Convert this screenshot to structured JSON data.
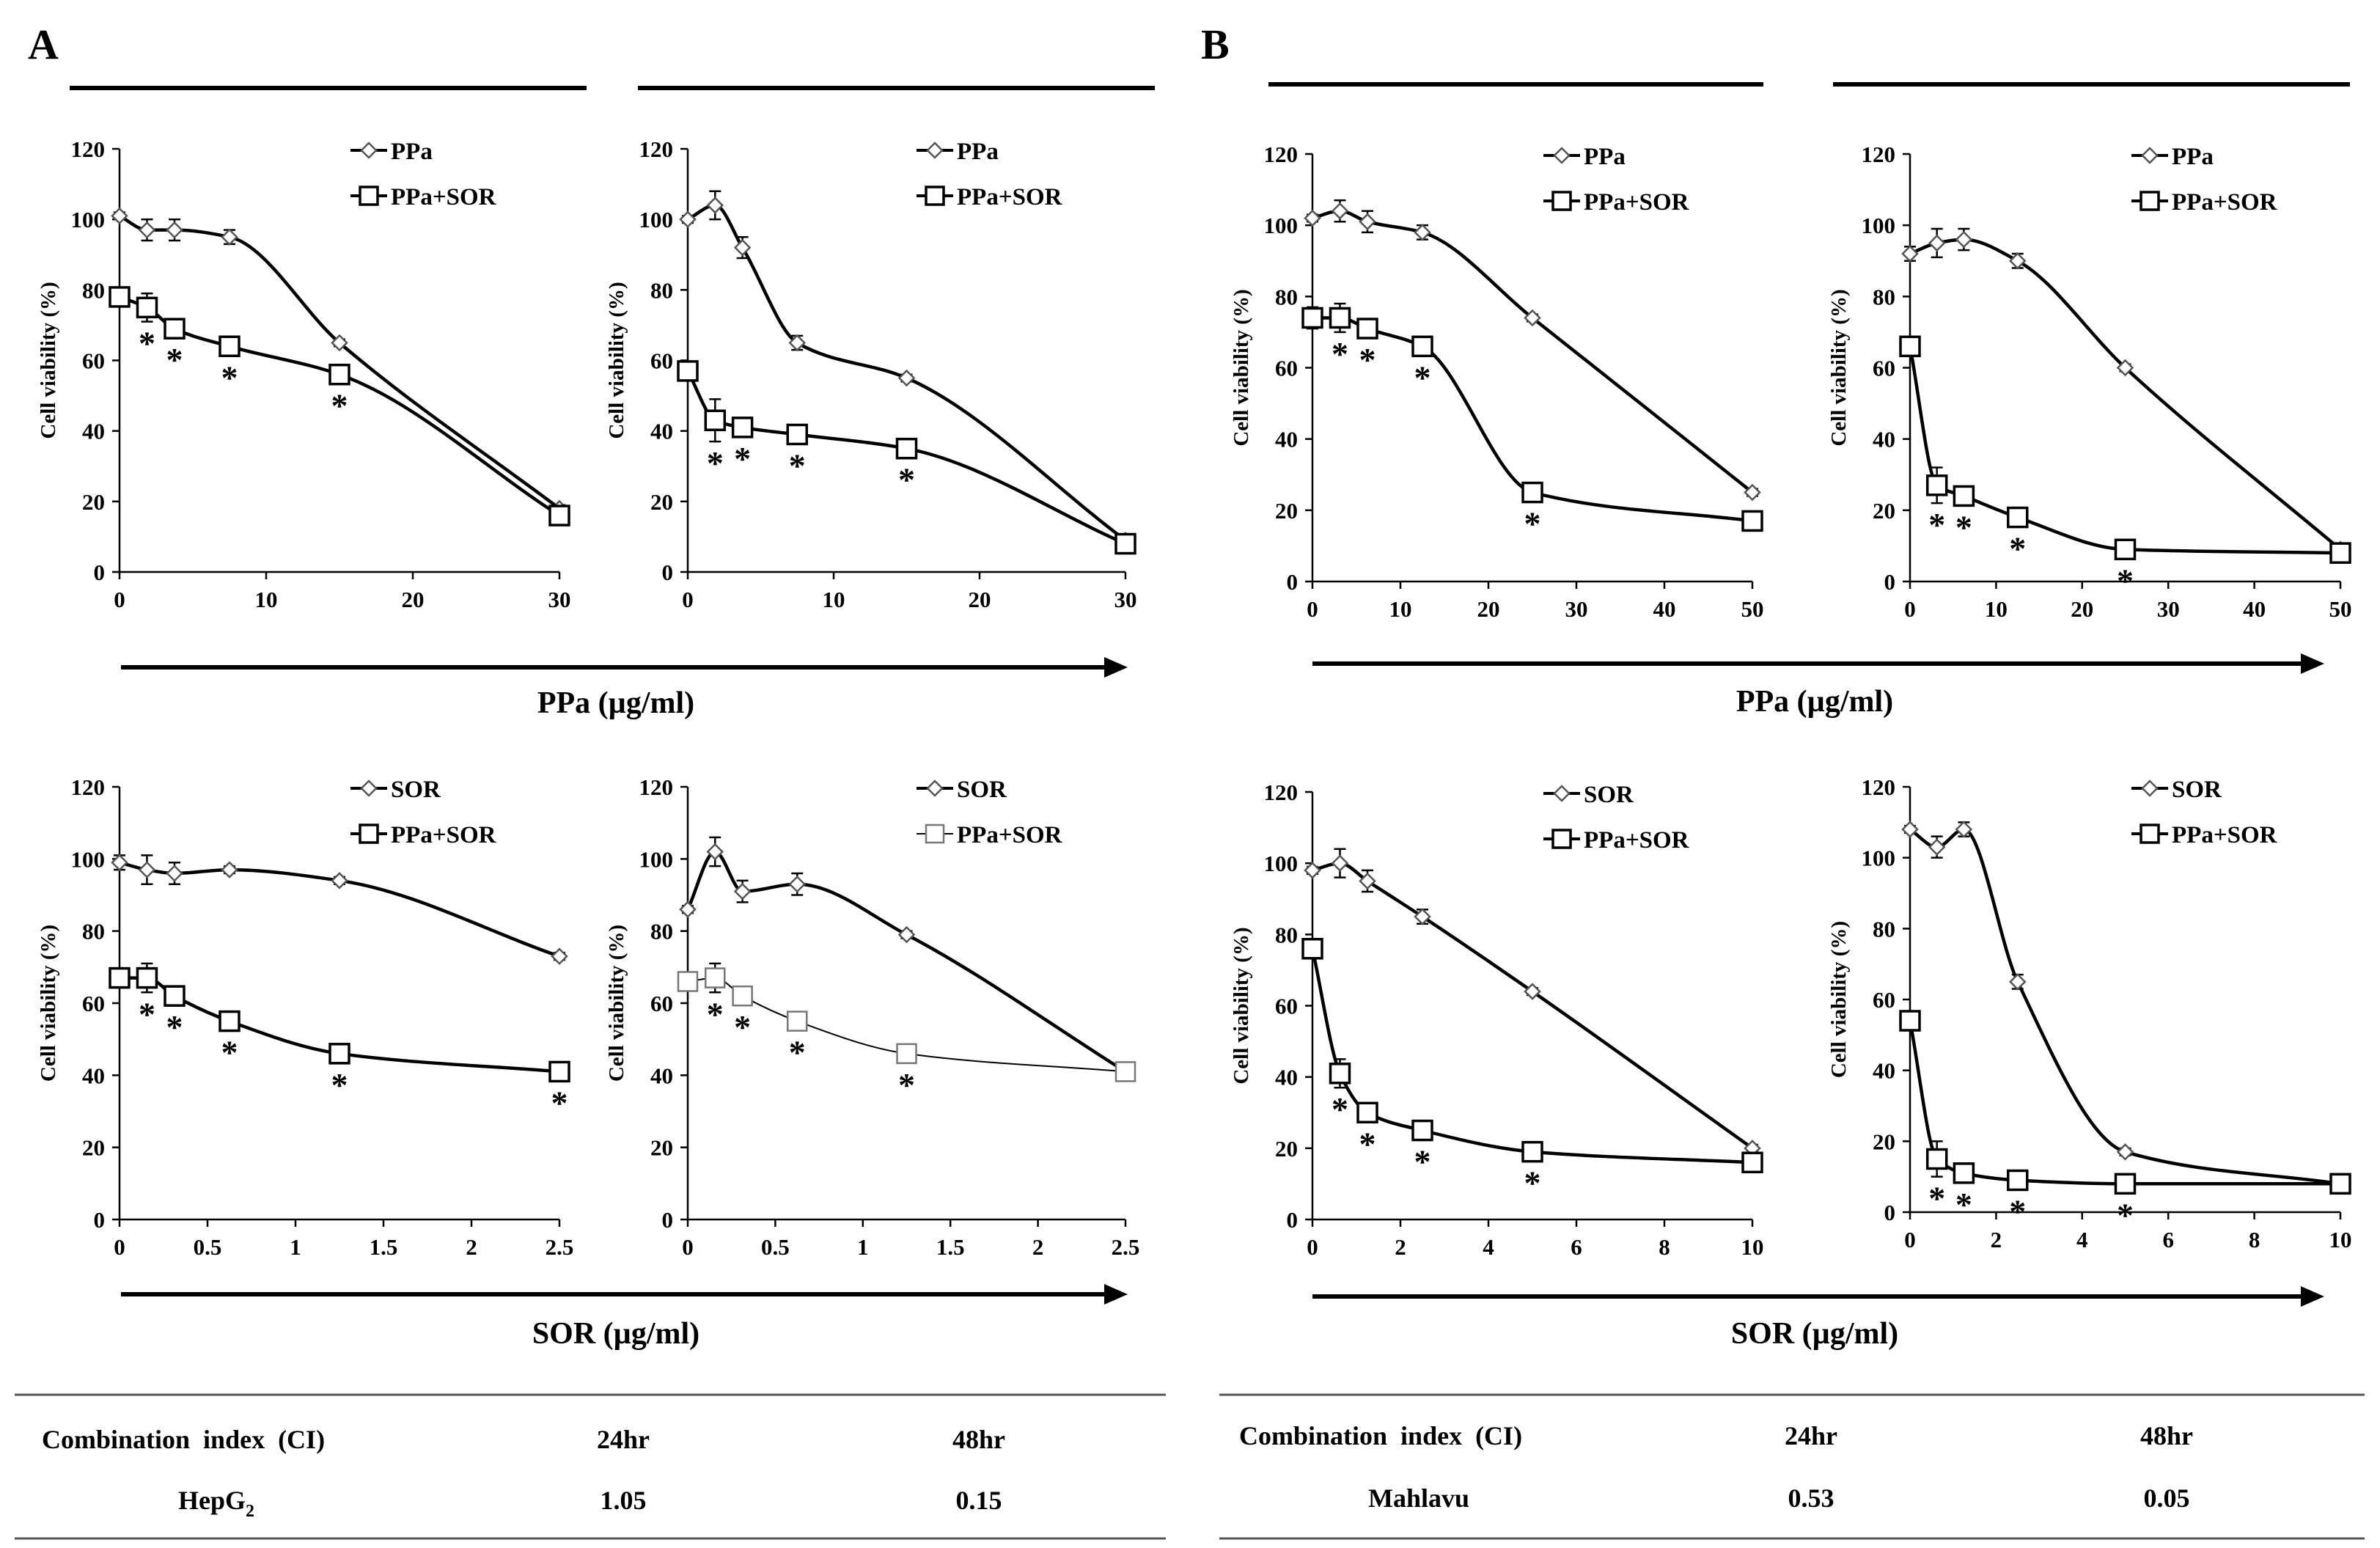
{
  "panels": [
    {
      "letter": "A",
      "cell_line": "HepG2",
      "ci_24": "1.05",
      "ci_48": "0.15"
    },
    {
      "letter": "B",
      "cell_line": "Mahlavu",
      "ci_24": "0.53",
      "ci_48": "0.05"
    }
  ],
  "axis_titles": {
    "ppa": "PPa (µg/ml)",
    "sor": "SOR (µg/ml)"
  },
  "table": {
    "header_label": "Combination  index  (CI)",
    "col_24": "24hr",
    "col_48": "48hr"
  },
  "style": {
    "line_color": "#000000",
    "light_marker_color": "#777777"
  },
  "chart_data": [
    {
      "id": "A-ppa-24",
      "type": "line",
      "title": "",
      "xlabel": "PPa (µg/ml)",
      "ylabel": "Cell viability (%)",
      "xlim": [
        0,
        30
      ],
      "ylim": [
        0,
        120
      ],
      "xticks": [
        0,
        10,
        20,
        30
      ],
      "yticks": [
        0,
        20,
        40,
        60,
        80,
        100,
        120
      ],
      "series": [
        {
          "name": "PPa",
          "marker": "diamond",
          "x": [
            0,
            1.875,
            3.75,
            7.5,
            15,
            30
          ],
          "y": [
            101,
            97,
            97,
            95,
            65,
            18
          ],
          "err": [
            1,
            3,
            3,
            2,
            1,
            1
          ]
        },
        {
          "name": "PPa+SOR",
          "marker": "square",
          "x": [
            0,
            1.875,
            3.75,
            7.5,
            15,
            30
          ],
          "y": [
            78,
            75,
            69,
            64,
            56,
            16
          ],
          "err": [
            2,
            4,
            2,
            2,
            2,
            1
          ],
          "sig": [
            false,
            true,
            true,
            true,
            true,
            false
          ]
        }
      ]
    },
    {
      "id": "A-ppa-48",
      "type": "line",
      "title": "",
      "xlabel": "PPa (µg/ml)",
      "ylabel": "Cell viability (%)",
      "xlim": [
        0,
        30
      ],
      "ylim": [
        0,
        120
      ],
      "xticks": [
        0,
        10,
        20,
        30
      ],
      "yticks": [
        0,
        20,
        40,
        60,
        80,
        100,
        120
      ],
      "series": [
        {
          "name": "PPa",
          "marker": "diamond",
          "x": [
            0,
            1.875,
            3.75,
            7.5,
            15,
            30
          ],
          "y": [
            100,
            104,
            92,
            65,
            55,
            9
          ],
          "err": [
            1,
            4,
            3,
            2,
            1,
            1
          ]
        },
        {
          "name": "PPa+SOR",
          "marker": "square",
          "x": [
            0,
            1.875,
            3.75,
            7.5,
            15,
            30
          ],
          "y": [
            57,
            43,
            41,
            39,
            35,
            8
          ],
          "err": [
            2,
            6,
            2,
            2,
            2,
            1
          ],
          "sig": [
            false,
            true,
            true,
            true,
            true,
            false
          ]
        }
      ]
    },
    {
      "id": "B-ppa-24",
      "type": "line",
      "title": "",
      "xlabel": "PPa (µg/ml)",
      "ylabel": "Cell viability (%)",
      "xlim": [
        0,
        50
      ],
      "ylim": [
        0,
        120
      ],
      "xticks": [
        0,
        10,
        20,
        30,
        40,
        50
      ],
      "yticks": [
        0,
        20,
        40,
        60,
        80,
        100,
        120
      ],
      "series": [
        {
          "name": "PPa",
          "marker": "diamond",
          "x": [
            0,
            3.125,
            6.25,
            12.5,
            25,
            50
          ],
          "y": [
            102,
            104,
            101,
            98,
            74,
            25
          ],
          "err": [
            1,
            3,
            3,
            2,
            1,
            1
          ]
        },
        {
          "name": "PPa+SOR",
          "marker": "square",
          "x": [
            0,
            3.125,
            6.25,
            12.5,
            25,
            50
          ],
          "y": [
            74,
            74,
            71,
            66,
            25,
            17
          ],
          "err": [
            3,
            4,
            2,
            2,
            2,
            1
          ],
          "sig": [
            false,
            true,
            true,
            true,
            true,
            false
          ]
        }
      ]
    },
    {
      "id": "B-ppa-48",
      "type": "line",
      "title": "",
      "xlabel": "PPa (µg/ml)",
      "ylabel": "Cell viability (%)",
      "xlim": [
        0,
        50
      ],
      "ylim": [
        0,
        120
      ],
      "xticks": [
        0,
        10,
        20,
        30,
        40,
        50
      ],
      "yticks": [
        0,
        20,
        40,
        60,
        80,
        100,
        120
      ],
      "series": [
        {
          "name": "PPa",
          "marker": "diamond",
          "x": [
            0,
            3.125,
            6.25,
            12.5,
            25,
            50
          ],
          "y": [
            92,
            95,
            96,
            90,
            60,
            9
          ],
          "err": [
            2,
            4,
            3,
            2,
            1,
            1
          ]
        },
        {
          "name": "PPa+SOR",
          "marker": "square",
          "x": [
            0,
            3.125,
            6.25,
            12.5,
            25,
            50
          ],
          "y": [
            66,
            27,
            24,
            18,
            9,
            8
          ],
          "err": [
            2,
            5,
            2,
            2,
            2,
            1
          ],
          "sig": [
            false,
            true,
            true,
            true,
            true,
            false
          ]
        }
      ]
    },
    {
      "id": "A-sor-24",
      "type": "line",
      "title": "",
      "xlabel": "SOR (µg/ml)",
      "ylabel": "Cell viability (%)",
      "xlim": [
        0,
        2.5
      ],
      "ylim": [
        0,
        120
      ],
      "xticks": [
        0,
        0.5,
        1,
        1.5,
        2,
        2.5
      ],
      "yticks": [
        0,
        20,
        40,
        60,
        80,
        100,
        120
      ],
      "series": [
        {
          "name": "SOR",
          "marker": "diamond",
          "x": [
            0,
            0.156,
            0.3125,
            0.625,
            1.25,
            2.5
          ],
          "y": [
            99,
            97,
            96,
            97,
            94,
            73
          ],
          "err": [
            2,
            4,
            3,
            1,
            1,
            1
          ]
        },
        {
          "name": "PPa+SOR",
          "marker": "square",
          "x": [
            0,
            0.156,
            0.3125,
            0.625,
            1.25,
            2.5
          ],
          "y": [
            67,
            67,
            62,
            55,
            46,
            41
          ],
          "err": [
            2,
            4,
            2,
            1,
            1,
            1
          ],
          "sig": [
            false,
            true,
            true,
            true,
            true,
            true
          ]
        }
      ]
    },
    {
      "id": "A-sor-48",
      "type": "line",
      "title": "",
      "xlabel": "SOR (µg/ml)",
      "ylabel": "Cell viability (%)",
      "xlim": [
        0,
        2.5
      ],
      "ylim": [
        0,
        120
      ],
      "xticks": [
        0,
        0.5,
        1,
        1.5,
        2,
        2.5
      ],
      "yticks": [
        0,
        20,
        40,
        60,
        80,
        100,
        120
      ],
      "series": [
        {
          "name": "SOR",
          "marker": "diamond",
          "x": [
            0,
            0.156,
            0.3125,
            0.625,
            1.25,
            2.5
          ],
          "y": [
            86,
            102,
            91,
            93,
            79,
            41
          ],
          "err": [
            1,
            4,
            3,
            3,
            1,
            1
          ]
        },
        {
          "name": "PPa+SOR",
          "marker": "square",
          "x": [
            0,
            0.156,
            0.3125,
            0.625,
            1.25,
            2.5
          ],
          "y": [
            66,
            67,
            62,
            55,
            46,
            41
          ],
          "err": [
            2,
            4,
            2,
            2,
            1,
            1
          ],
          "sig": [
            false,
            true,
            true,
            true,
            true,
            false
          ],
          "style": "light"
        }
      ]
    },
    {
      "id": "B-sor-24",
      "type": "line",
      "title": "",
      "xlabel": "SOR (µg/ml)",
      "ylabel": "Cell viability (%)",
      "xlim": [
        0,
        10
      ],
      "ylim": [
        0,
        120
      ],
      "xticks": [
        0,
        2,
        4,
        6,
        8,
        10
      ],
      "yticks": [
        0,
        20,
        40,
        60,
        80,
        100,
        120
      ],
      "series": [
        {
          "name": "SOR",
          "marker": "diamond",
          "x": [
            0,
            0.625,
            1.25,
            2.5,
            5,
            10
          ],
          "y": [
            98,
            100,
            95,
            85,
            64,
            20
          ],
          "err": [
            1,
            4,
            3,
            2,
            1,
            1
          ]
        },
        {
          "name": "PPa+SOR",
          "marker": "square",
          "x": [
            0,
            0.625,
            1.25,
            2.5,
            5,
            10
          ],
          "y": [
            76,
            41,
            30,
            25,
            19,
            16
          ],
          "err": [
            2,
            4,
            2,
            1,
            1,
            1
          ],
          "sig": [
            false,
            true,
            true,
            true,
            true,
            false
          ]
        }
      ]
    },
    {
      "id": "B-sor-48",
      "type": "line",
      "title": "",
      "xlabel": "SOR (µg/ml)",
      "ylabel": "Cell viability (%)",
      "xlim": [
        0,
        10
      ],
      "ylim": [
        0,
        120
      ],
      "xticks": [
        0,
        2,
        4,
        6,
        8,
        10
      ],
      "yticks": [
        0,
        20,
        40,
        60,
        80,
        100,
        120
      ],
      "series": [
        {
          "name": "SOR",
          "marker": "diamond",
          "x": [
            0,
            0.625,
            1.25,
            2.5,
            5,
            10
          ],
          "y": [
            108,
            103,
            108,
            65,
            17,
            8
          ],
          "err": [
            1,
            3,
            2,
            2,
            1,
            1
          ]
        },
        {
          "name": "PPa+SOR",
          "marker": "square",
          "x": [
            0,
            0.625,
            1.25,
            2.5,
            5,
            10
          ],
          "y": [
            54,
            15,
            11,
            9,
            8,
            8
          ],
          "err": [
            2,
            5,
            2,
            2,
            2,
            1
          ],
          "sig": [
            false,
            true,
            true,
            true,
            true,
            false
          ]
        }
      ]
    }
  ]
}
